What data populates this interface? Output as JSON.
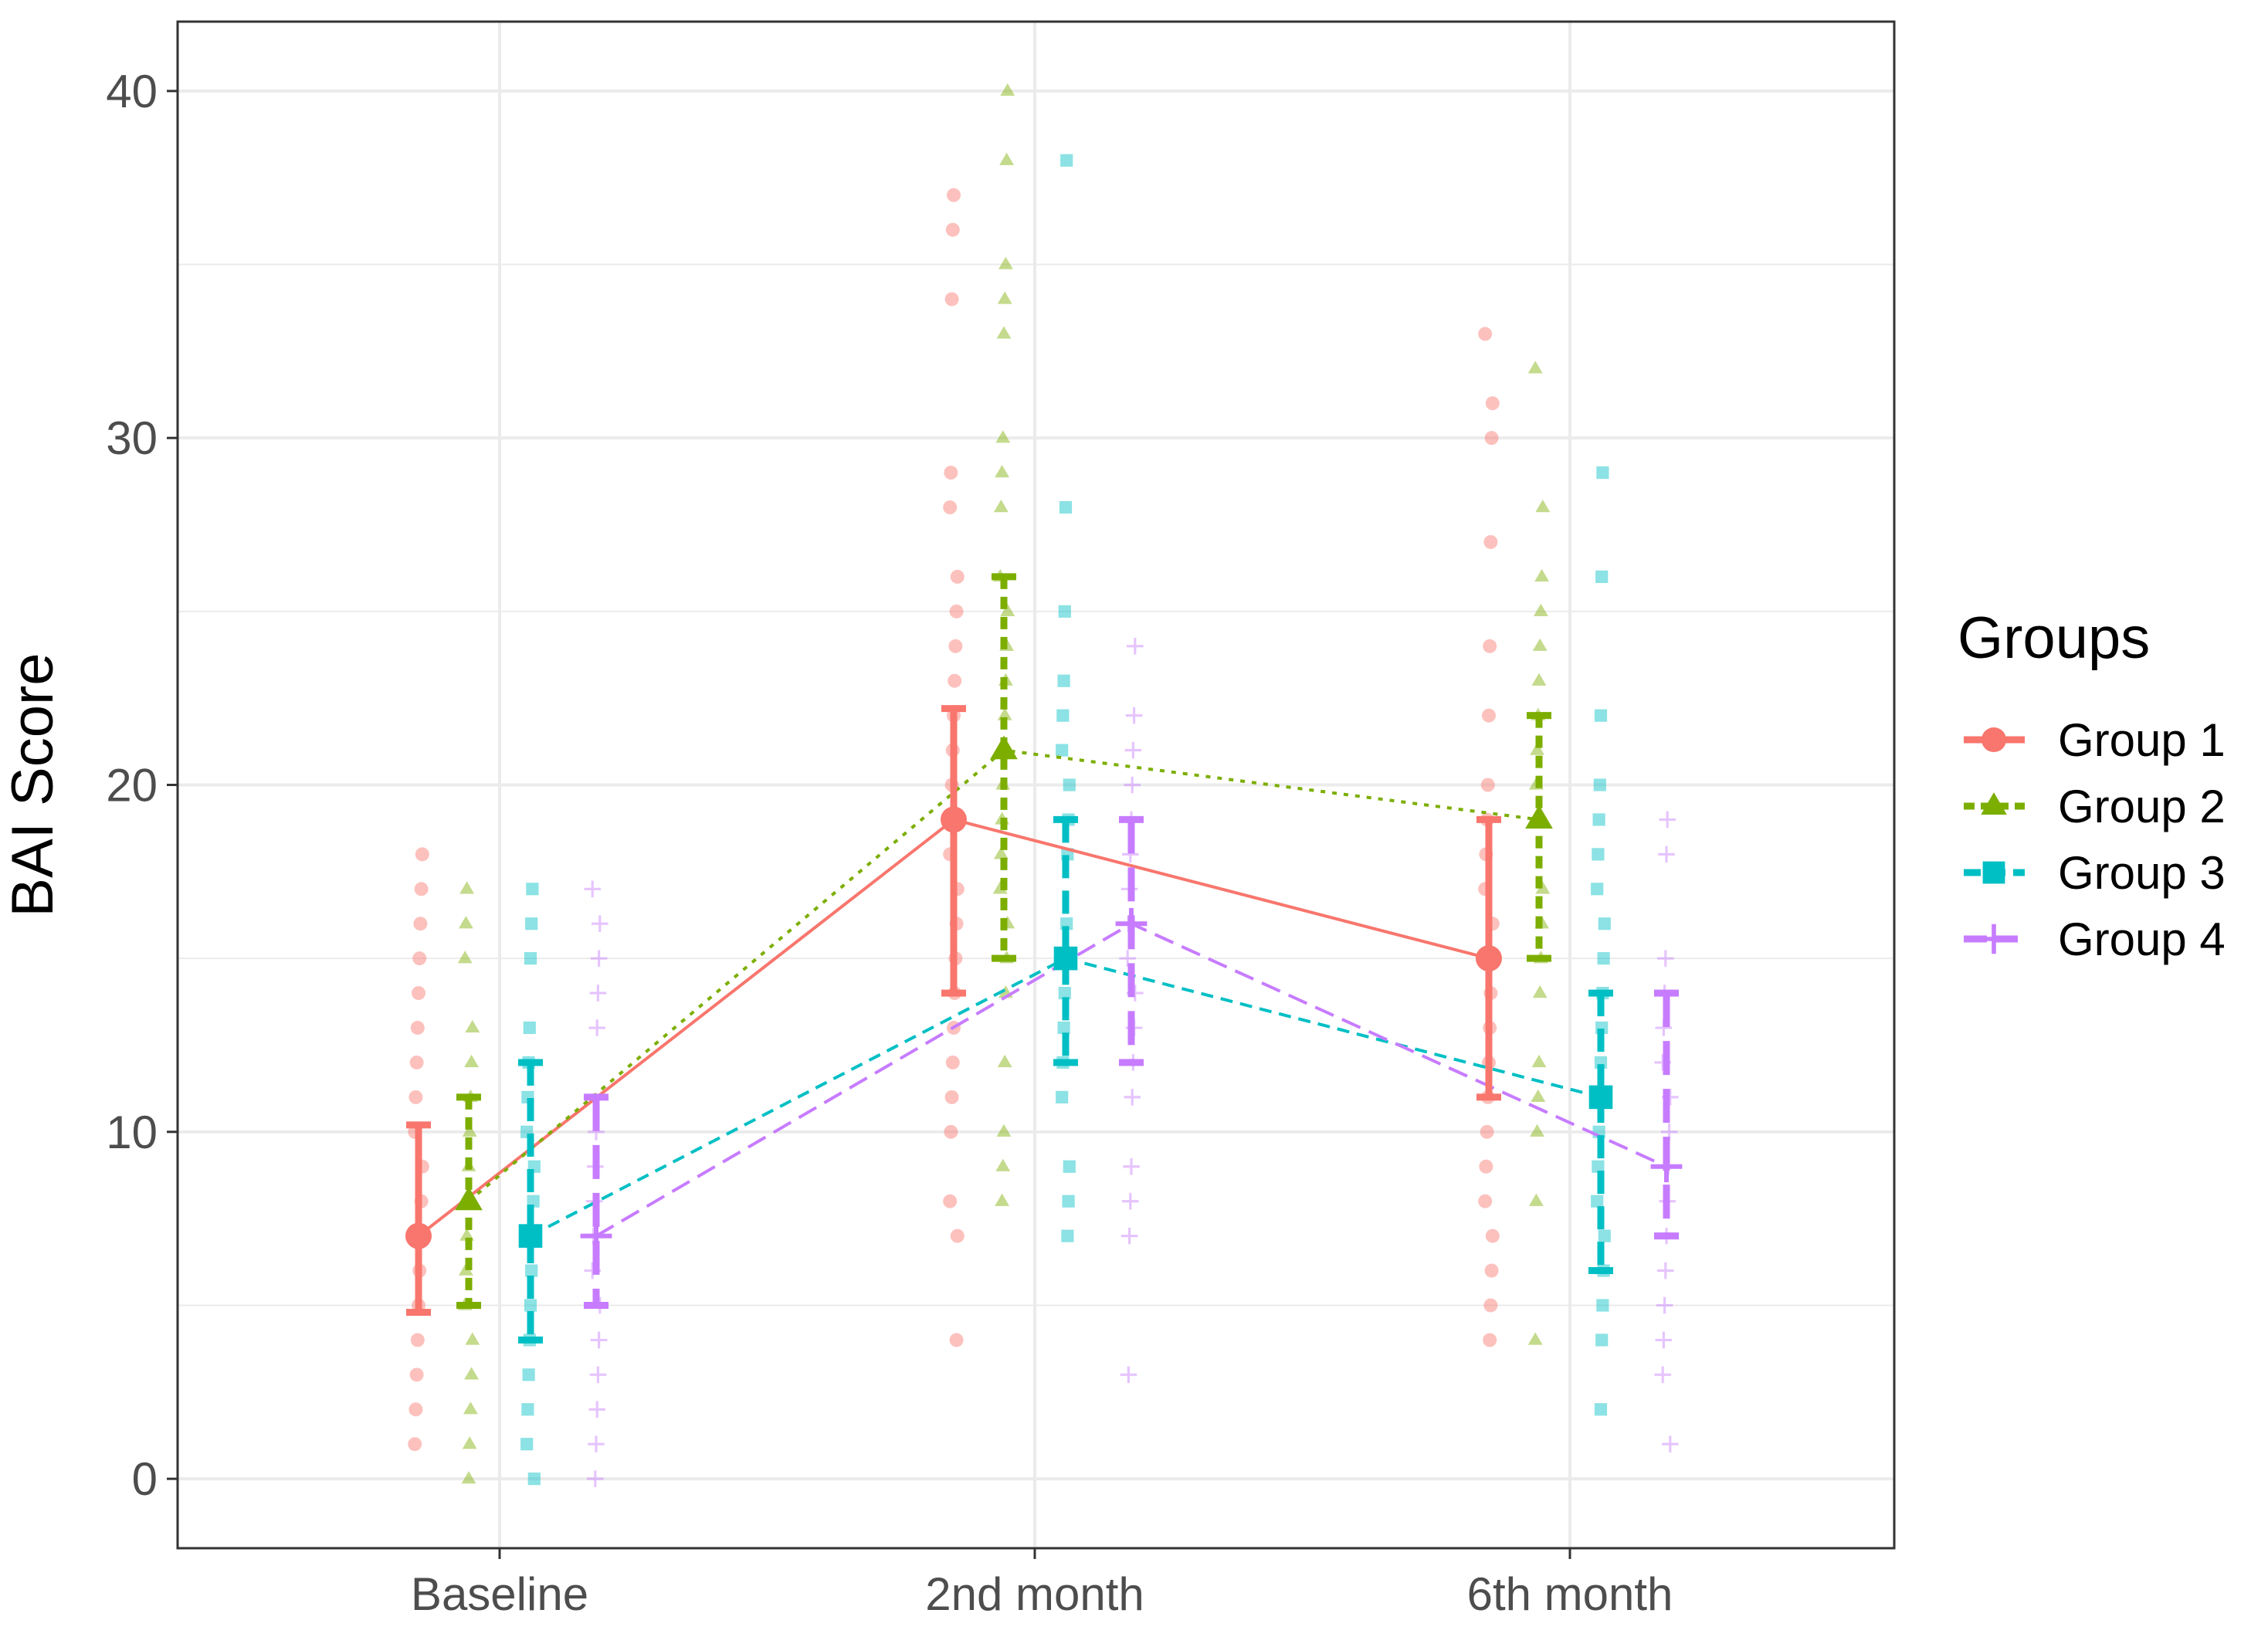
{
  "chart_data": {
    "type": "line",
    "title": "",
    "xlabel": "",
    "ylabel": "BAI Score",
    "categories": [
      "Baseline",
      "2nd month",
      "6th month"
    ],
    "ylim": [
      -2,
      42
    ],
    "yticks": [
      0,
      10,
      20,
      30,
      40
    ],
    "legend": {
      "title": "Groups",
      "position": "right"
    },
    "series": [
      {
        "name": "Group 1",
        "color": "#F8766D",
        "shape": "circle",
        "linestyle": "solid",
        "means": [
          7,
          19,
          15
        ],
        "ci_low": [
          4.8,
          14,
          11
        ],
        "ci_high": [
          10.2,
          22.2,
          19
        ],
        "points": [
          [
            1,
            2,
            3,
            4,
            5,
            6,
            7,
            8,
            9,
            10,
            11,
            12,
            13,
            14,
            15,
            16,
            17,
            18
          ],
          [
            4,
            7,
            8,
            10,
            11,
            12,
            13,
            14,
            15,
            16,
            17,
            18,
            19,
            20,
            21,
            22,
            23,
            24,
            25,
            26,
            28,
            29,
            34,
            36,
            37
          ],
          [
            4,
            5,
            6,
            7,
            8,
            9,
            10,
            11,
            12,
            13,
            14,
            15,
            16,
            17,
            18,
            19,
            20,
            22,
            24,
            27,
            30,
            31,
            33
          ]
        ]
      },
      {
        "name": "Group 2",
        "color": "#7CAE00",
        "shape": "triangle",
        "linestyle": "dotted",
        "means": [
          8,
          21,
          19
        ],
        "ci_low": [
          5,
          15,
          15
        ],
        "ci_high": [
          11,
          26,
          22
        ],
        "points": [
          [
            0,
            1,
            2,
            3,
            4,
            5,
            6,
            7,
            8,
            9,
            10,
            11,
            12,
            13,
            15,
            16,
            17
          ],
          [
            8,
            9,
            10,
            12,
            14,
            15,
            16,
            17,
            18,
            19,
            20,
            21,
            22,
            23,
            24,
            25,
            26,
            28,
            29,
            30,
            33,
            34,
            35,
            38,
            40
          ],
          [
            4,
            8,
            10,
            11,
            12,
            14,
            15,
            16,
            17,
            19,
            20,
            21,
            22,
            23,
            24,
            25,
            26,
            28,
            32
          ]
        ]
      },
      {
        "name": "Group 3",
        "color": "#00BFC4",
        "shape": "square",
        "linestyle": "dashed",
        "means": [
          7,
          15,
          11
        ],
        "ci_low": [
          4,
          12,
          6
        ],
        "ci_high": [
          12,
          19,
          14
        ],
        "points": [
          [
            0,
            1,
            2,
            3,
            4,
            5,
            6,
            7,
            8,
            9,
            10,
            11,
            12,
            13,
            15,
            16,
            17
          ],
          [
            7,
            8,
            9,
            11,
            12,
            13,
            14,
            15,
            16,
            18,
            19,
            20,
            21,
            22,
            23,
            25,
            28,
            38
          ],
          [
            2,
            4,
            5,
            6,
            7,
            8,
            9,
            10,
            11,
            12,
            13,
            14,
            15,
            16,
            17,
            18,
            19,
            20,
            22,
            26,
            29
          ]
        ]
      },
      {
        "name": "Group 4",
        "color": "#C77CFF",
        "shape": "plus",
        "linestyle": "longdash",
        "means": [
          7,
          16,
          9
        ],
        "ci_low": [
          5,
          12,
          7
        ],
        "ci_high": [
          11,
          19,
          14
        ],
        "points": [
          [
            0,
            1,
            2,
            3,
            4,
            5,
            6,
            7,
            8,
            9,
            10,
            13,
            14,
            15,
            16,
            17
          ],
          [
            3,
            7,
            8,
            9,
            11,
            12,
            13,
            14,
            15,
            16,
            17,
            18,
            19,
            20,
            21,
            22,
            24
          ],
          [
            1,
            3,
            4,
            5,
            6,
            7,
            8,
            9,
            10,
            11,
            12,
            13,
            14,
            15,
            18,
            19
          ]
        ]
      }
    ]
  }
}
